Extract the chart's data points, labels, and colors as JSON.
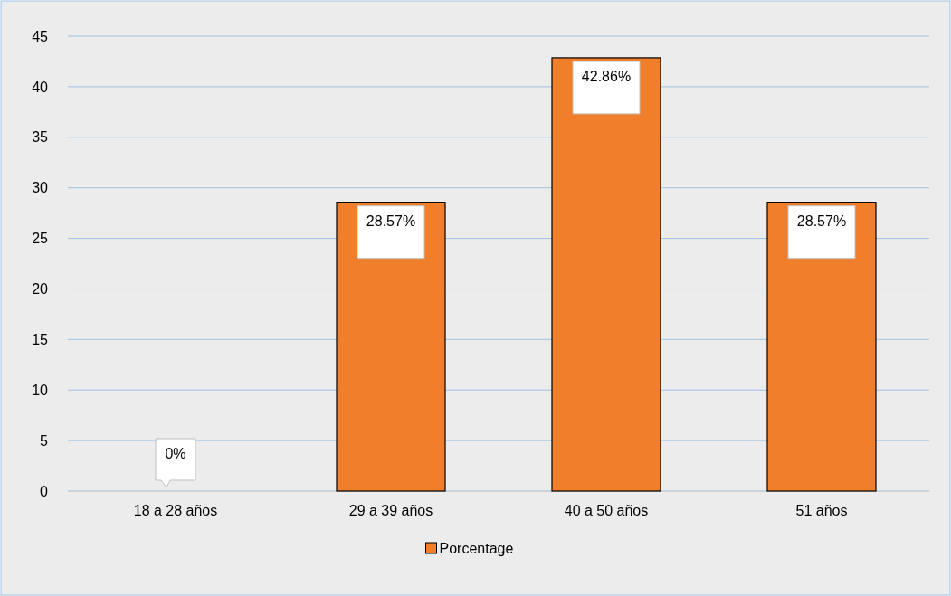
{
  "chart_data": {
    "type": "bar",
    "categories": [
      "18 a 28 años",
      "29 a 39 años",
      "40 a 50 años",
      "51 años"
    ],
    "series": [
      {
        "name": "Porcentage",
        "color": "#f07e2a",
        "values": [
          0,
          28.57,
          42.86,
          28.57
        ],
        "value_labels": [
          "0%",
          "28.57%",
          "42.86%",
          "28.57%"
        ]
      }
    ],
    "ylim": [
      0,
      45
    ],
    "yticks": [
      0,
      5,
      10,
      15,
      20,
      25,
      30,
      35,
      40,
      45
    ],
    "grid": "y",
    "legend": "bottom"
  }
}
